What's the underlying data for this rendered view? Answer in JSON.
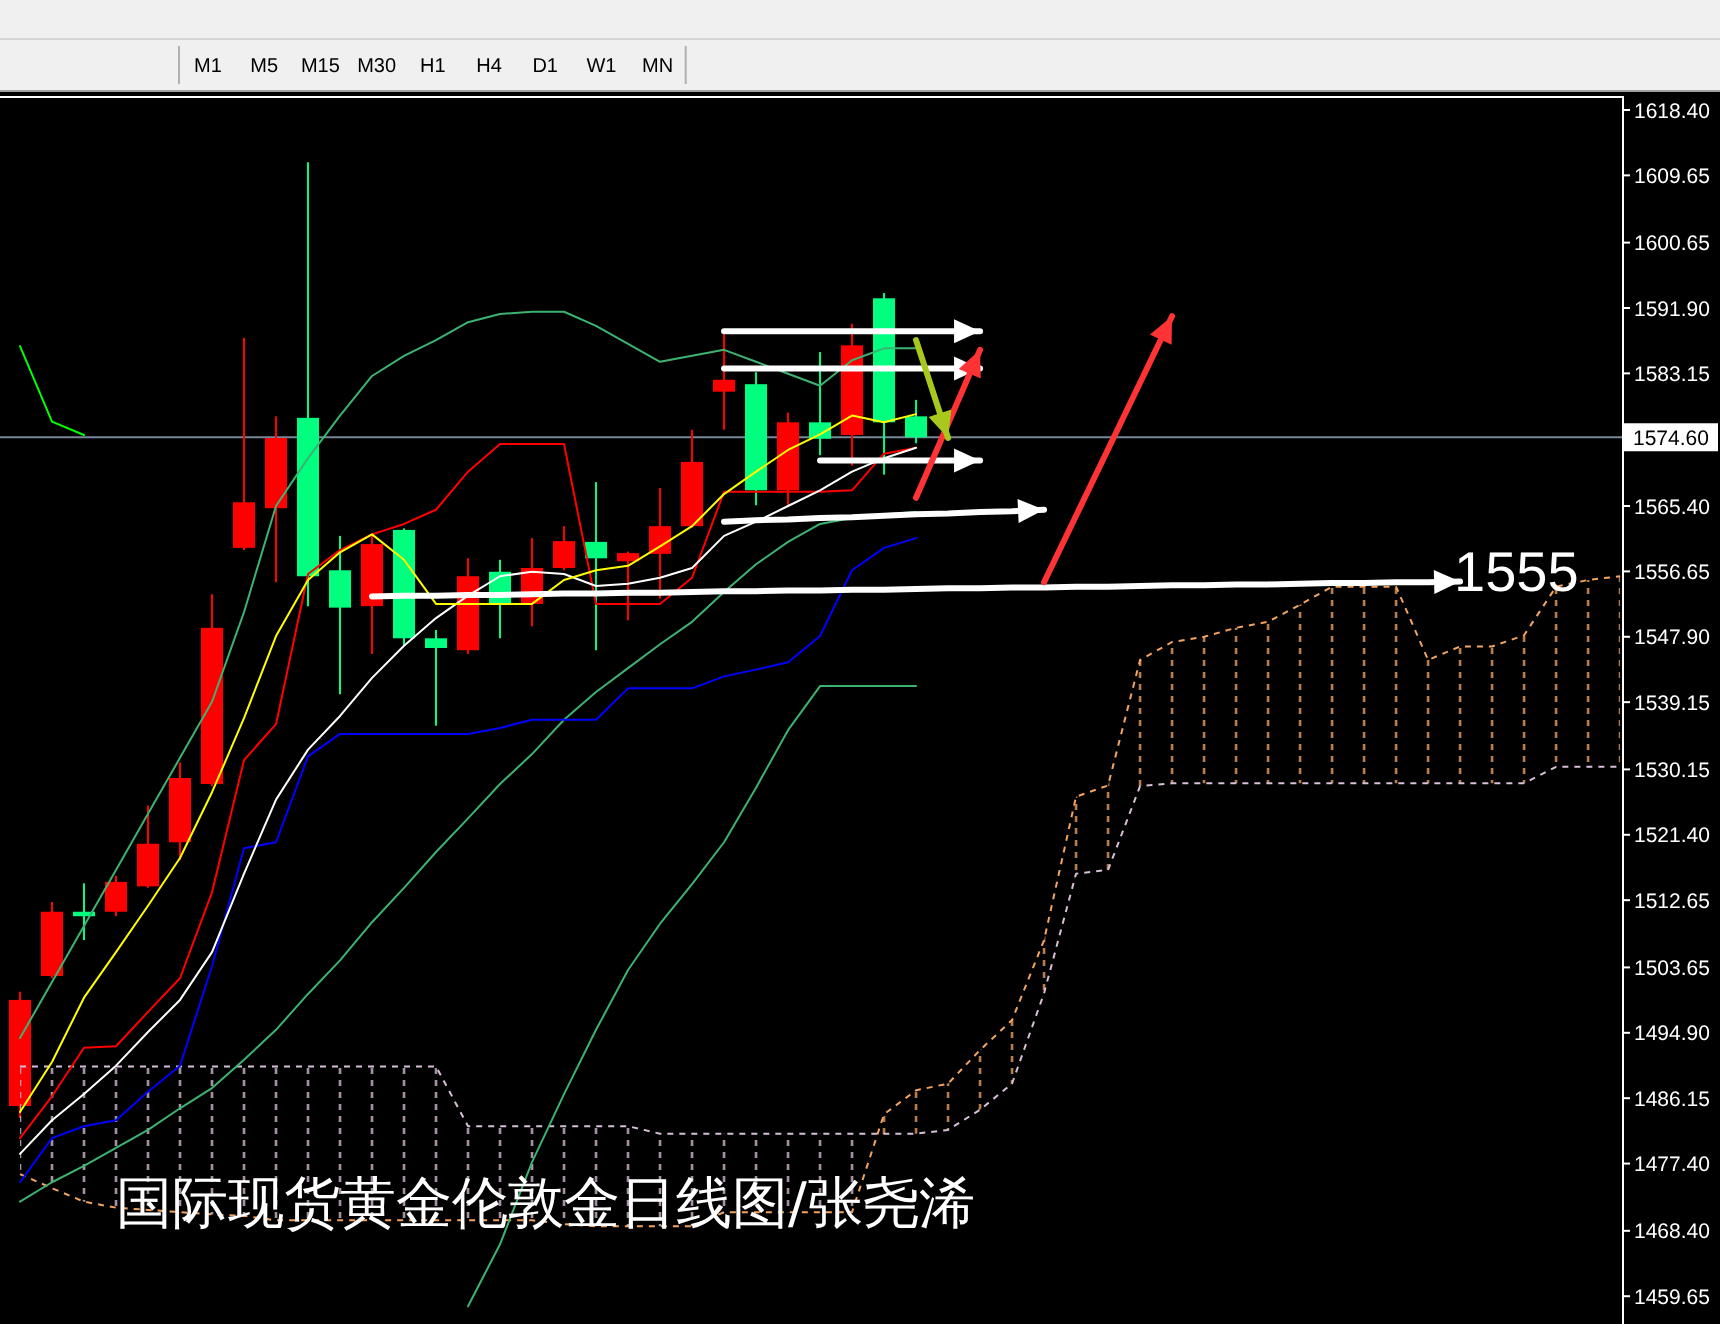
{
  "chart_data": {
    "type": "candlestick",
    "title": "国际现货黄金伦敦金日线图/张尧浠",
    "categories": [
      null,
      null,
      null,
      null,
      null,
      null,
      null,
      null,
      null,
      null,
      null,
      null,
      null,
      null,
      null,
      null,
      null,
      null,
      null,
      null,
      null,
      null,
      null,
      null,
      null,
      null,
      null,
      null,
      null,
      null,
      null,
      null,
      null,
      null,
      null,
      null,
      null,
      null,
      null,
      null,
      null,
      null,
      null,
      null,
      null,
      null,
      null,
      null,
      null,
      null,
      null
    ],
    "ohlc": [
      [
        1485.1,
        1500.4,
        1483.5,
        1499.3
      ],
      [
        1502.5,
        1512.4,
        1502.2,
        1511.1
      ],
      [
        1511.1,
        1514.9,
        1507.3,
        1510.5
      ],
      [
        1511.1,
        1515.9,
        1510.5,
        1515.1
      ],
      [
        1514.5,
        1525.3,
        1514.3,
        1520.2
      ],
      [
        1520.4,
        1531.1,
        1518.0,
        1529.0
      ],
      [
        1528.2,
        1553.6,
        1527.9,
        1549.1
      ],
      [
        1559.8,
        1587.9,
        1559.5,
        1565.9
      ],
      [
        1565.1,
        1577.4,
        1555.2,
        1574.5
      ],
      [
        1577.2,
        1611.4,
        1552.0,
        1556.0
      ],
      [
        1556.8,
        1561.4,
        1540.2,
        1551.8
      ],
      [
        1552.0,
        1561.7,
        1545.6,
        1560.3
      ],
      [
        1562.2,
        1562.4,
        1546.7,
        1547.7
      ],
      [
        1547.7,
        1548.8,
        1536.0,
        1546.4
      ],
      [
        1546.1,
        1558.4,
        1545.6,
        1556.0
      ],
      [
        1556.6,
        1558.2,
        1547.7,
        1552.3
      ],
      [
        1552.3,
        1561.1,
        1549.3,
        1557.1
      ],
      [
        1557.1,
        1562.7,
        1556.8,
        1560.7
      ],
      [
        1560.6,
        1568.6,
        1546.1,
        1558.4
      ],
      [
        1558.0,
        1559.3,
        1550.1,
        1559.1
      ],
      [
        1559.0,
        1567.8,
        1553.0,
        1562.7
      ],
      [
        1562.7,
        1575.6,
        1562.5,
        1571.3
      ],
      [
        1580.7,
        1588.4,
        1575.6,
        1582.3
      ],
      [
        1581.7,
        1583.3,
        1565.5,
        1567.5
      ],
      [
        1567.5,
        1577.9,
        1565.5,
        1576.6
      ],
      [
        1576.6,
        1586.0,
        1572.2,
        1574.4
      ],
      [
        1574.9,
        1589.8,
        1570.8,
        1586.9
      ],
      [
        1593.2,
        1593.9,
        1569.6,
        1576.6
      ],
      [
        1577.4,
        1579.6,
        1573.8,
        1574.6
      ],
      null,
      null,
      null,
      null,
      null,
      null,
      null,
      null,
      null,
      null,
      null,
      null,
      null,
      null,
      null,
      null,
      null,
      null,
      null,
      null,
      null,
      null
    ],
    "colors": [
      "#ff0000",
      "#ff0000",
      "#00ff7f",
      "#ff0000",
      "#ff0000",
      "#ff0000",
      "#ff0000",
      "#ff0000",
      "#ff0000",
      "#00ff7f",
      "#00ff7f",
      "#ff0000",
      "#00ff7f",
      "#00ff7f",
      "#ff0000",
      "#00ff7f",
      "#ff0000",
      "#ff0000",
      "#00ff7f",
      "#ff0000",
      "#ff0000",
      "#ff0000",
      "#ff0000",
      "#00ff7f",
      "#ff0000",
      "#00ff7f",
      "#ff0000",
      "#00ff7f",
      "#00ff7f",
      null,
      null,
      null,
      null,
      null,
      null,
      null,
      null,
      null,
      null,
      null,
      null,
      null,
      null,
      null,
      null,
      null,
      null,
      null,
      null,
      null,
      null
    ],
    "series": [
      {
        "type": "area",
        "color": "#f4a460",
        "line_style": "dashed",
        "values": [
          1476.0,
          1474.1,
          1472.3,
          1471.5,
          1471.2,
          1470.9,
          1470.6,
          1470.4,
          1469.8,
          1469.8,
          1469.8,
          1469.8,
          1469.8,
          1469.8,
          1469.8,
          1469.8,
          1469.8,
          1469.3,
          1469.0,
          1469.0,
          1469.0,
          1469.0,
          1470.9,
          1470.9,
          1470.9,
          1470.9,
          1470.9,
          1484.0,
          1487.2,
          1488.1,
          1492.6,
          1496.6,
          1507.3,
          1526.5,
          1528.0,
          1544.8,
          1547.2,
          1547.9,
          1549.1,
          1549.9,
          1552.2,
          1554.6,
          1554.6,
          1554.6,
          1544.8,
          1546.6,
          1546.6,
          1548.1,
          1554.6,
          1555.5,
          1556.0
        ]
      },
      {
        "type": "area",
        "color": "#d8bfd8",
        "line_style": "dashed",
        "values": [
          1490.4,
          1490.4,
          1490.4,
          1490.4,
          1490.4,
          1490.4,
          1490.4,
          1490.4,
          1490.4,
          1490.4,
          1490.4,
          1490.4,
          1490.4,
          1490.4,
          1482.4,
          1482.4,
          1482.4,
          1482.4,
          1482.4,
          1482.4,
          1481.4,
          1481.4,
          1481.4,
          1481.4,
          1481.4,
          1481.4,
          1481.4,
          1481.4,
          1481.4,
          1481.9,
          1484.6,
          1488.1,
          1500.2,
          1516.2,
          1516.7,
          1527.9,
          1528.3,
          1528.3,
          1528.3,
          1528.3,
          1528.3,
          1528.3,
          1528.3,
          1528.3,
          1528.3,
          1528.3,
          1528.3,
          1528.3,
          1530.5,
          1530.5,
          1530.5
        ]
      },
      {
        "type": "line",
        "color": "#3cb371",
        "values": [
          1494.2,
          1501.7,
          1509.2,
          1516.7,
          1524.2,
          1531.7,
          1539.2,
          1551.2,
          1565.4,
          1571.8,
          1577.5,
          1582.8,
          1585.5,
          1587.6,
          1590.0,
          1591.1,
          1591.4,
          1591.4,
          1589.5,
          1587.1,
          1584.7,
          1585.5,
          1586.3,
          1584.7,
          1583.1,
          1581.5,
          1584.9,
          1586.5,
          1586.5,
          null,
          null,
          null,
          null,
          null,
          null,
          null,
          null,
          null,
          null,
          null,
          null,
          null,
          null,
          null,
          null,
          null,
          null,
          null,
          null,
          null,
          null
        ]
      },
      {
        "type": "line",
        "color": "#3cb371",
        "values": [
          1472.3,
          1474.9,
          1477.1,
          1479.5,
          1481.9,
          1484.8,
          1487.5,
          1491.3,
          1495.3,
          1500.1,
          1504.6,
          1509.7,
          1514.3,
          1519.1,
          1523.6,
          1528.2,
          1532.2,
          1536.8,
          1540.5,
          1543.7,
          1546.9,
          1549.9,
          1553.9,
          1557.6,
          1560.6,
          1563.0,
          1563.8,
          1564.3,
          1564.6,
          null,
          null,
          null,
          null,
          null,
          null,
          null,
          null,
          null,
          null,
          null,
          null,
          null,
          null,
          null,
          null,
          null,
          null,
          null,
          null,
          null,
          null
        ]
      },
      {
        "type": "line",
        "color": "#3cb371",
        "values": [
          null,
          null,
          null,
          null,
          null,
          null,
          null,
          null,
          null,
          null,
          null,
          null,
          null,
          null,
          1458.3,
          1466.6,
          1477.6,
          1486.7,
          1495.3,
          1503.3,
          1509.5,
          1514.8,
          1520.4,
          1527.7,
          1535.4,
          1541.3,
          1541.3,
          1541.3,
          1541.3,
          null,
          null,
          null,
          null,
          null,
          null,
          null,
          null,
          null,
          null,
          null,
          null,
          null,
          null,
          null,
          null,
          null,
          null,
          null,
          null,
          null,
          null
        ]
      },
      {
        "type": "line",
        "color": "#0000ff",
        "values": [
          1474.9,
          1480.8,
          1482.4,
          1483.2,
          1487.0,
          1490.5,
          1503.8,
          1519.6,
          1520.4,
          1531.9,
          1534.9,
          1534.9,
          1534.9,
          1534.9,
          1534.9,
          1535.7,
          1536.8,
          1536.8,
          1536.8,
          1541.0,
          1541.0,
          1541.0,
          1542.6,
          1543.5,
          1544.5,
          1548.0,
          1556.8,
          1559.8,
          1561.1,
          null,
          null,
          null,
          null,
          null,
          null,
          null,
          null,
          null,
          null,
          null,
          null,
          null,
          null,
          null,
          null,
          null,
          null,
          null,
          null,
          null,
          null
        ]
      },
      {
        "type": "line",
        "color": "#ff0000",
        "values": [
          1480.8,
          1486.4,
          1492.9,
          1493.1,
          1497.7,
          1502.2,
          1513.7,
          1531.4,
          1536.2,
          1556.3,
          1559.5,
          1561.6,
          1563.0,
          1564.9,
          1570.0,
          1573.7,
          1573.7,
          1573.7,
          1552.3,
          1552.3,
          1552.3,
          1555.8,
          1567.3,
          1567.3,
          1567.3,
          1567.3,
          1567.5,
          1572.4,
          1573.2,
          null,
          null,
          null,
          null,
          null,
          null,
          null,
          null,
          null,
          null,
          null,
          null,
          null,
          null,
          null,
          null,
          null,
          null,
          null,
          null,
          null,
          null
        ]
      },
      {
        "type": "line",
        "color": "#ffffff",
        "values": [
          1478.7,
          1483.2,
          1486.7,
          1490.5,
          1495.0,
          1499.3,
          1505.7,
          1516.2,
          1526.1,
          1532.8,
          1537.3,
          1542.4,
          1546.7,
          1550.4,
          1553.4,
          1556.0,
          1556.6,
          1556.3,
          1554.7,
          1555.0,
          1555.8,
          1557.1,
          1561.4,
          1563.3,
          1565.4,
          1567.5,
          1570.0,
          1571.8,
          1573.2,
          null,
          null,
          null,
          null,
          null,
          null,
          null,
          null,
          null,
          null,
          null,
          null,
          null,
          null,
          null,
          null,
          null,
          null,
          null,
          null,
          null,
          null
        ]
      },
      {
        "type": "line",
        "color": "#ffff00",
        "values": [
          1484.3,
          1491.0,
          1499.6,
          1505.7,
          1511.9,
          1518.3,
          1527.1,
          1537.0,
          1548.0,
          1555.5,
          1559.2,
          1561.6,
          1558.2,
          1552.3,
          1552.3,
          1552.3,
          1552.3,
          1555.5,
          1556.8,
          1557.4,
          1560.0,
          1562.7,
          1567.0,
          1570.0,
          1572.9,
          1575.0,
          1577.5,
          1576.6,
          1577.7,
          null,
          null,
          null,
          null,
          null,
          null,
          null,
          null,
          null,
          null,
          null,
          null,
          null,
          null,
          null,
          null,
          null,
          null,
          null,
          null,
          null,
          null
        ]
      },
      {
        "type": "line",
        "color": "#00ff00",
        "values": [
          1586.8,
          1576.7,
          1574.9,
          null,
          null,
          null,
          null,
          null,
          null,
          null,
          null,
          null,
          null,
          null,
          null,
          null,
          null,
          null,
          null,
          null,
          null,
          null,
          null,
          null,
          null,
          null,
          null,
          null,
          null,
          null,
          null,
          null,
          null,
          null,
          null,
          null,
          null,
          null,
          null,
          null,
          null,
          null,
          null,
          null,
          null,
          null,
          null,
          null,
          null,
          null,
          null
        ]
      },
      {
        "type": "line",
        "color": "#ffffff",
        "values": [
          null,
          null,
          null,
          null,
          null,
          null,
          null,
          null,
          null,
          null,
          null,
          null,
          null,
          null,
          null,
          null,
          null,
          null,
          null,
          null,
          null,
          null,
          1588.8,
          1588.8,
          1588.8,
          1588.8,
          1588.8,
          1588.8,
          1588.8,
          1588.8,
          1588.8,
          null,
          null,
          null,
          null,
          null,
          null,
          null,
          null,
          null,
          null,
          null,
          null,
          null,
          null,
          null,
          null,
          null,
          null,
          null,
          null
        ]
      },
      {
        "type": "line",
        "color": "#ffffff",
        "values": [
          null,
          null,
          null,
          null,
          null,
          null,
          null,
          null,
          null,
          null,
          null,
          null,
          null,
          null,
          null,
          null,
          null,
          null,
          null,
          null,
          null,
          null,
          1583.8,
          1583.8,
          1583.8,
          1583.8,
          1583.8,
          1583.8,
          1583.8,
          1583.8,
          1583.8,
          null,
          null,
          null,
          null,
          null,
          null,
          null,
          null,
          null,
          null,
          null,
          null,
          null,
          null,
          null,
          null,
          null,
          null,
          null,
          null
        ]
      },
      {
        "type": "line",
        "color": "#ffffff",
        "values": [
          null,
          null,
          null,
          null,
          null,
          null,
          null,
          null,
          null,
          null,
          null,
          null,
          null,
          null,
          null,
          null,
          null,
          null,
          null,
          null,
          null,
          null,
          null,
          null,
          null,
          1571.5,
          1571.5,
          1571.5,
          1571.5,
          1571.5,
          1571.5,
          null,
          null,
          null,
          null,
          null,
          null,
          null,
          null,
          null,
          null,
          null,
          null,
          null,
          null,
          null,
          null,
          null,
          null,
          null,
          null
        ]
      },
      {
        "type": "line",
        "color": "#ffffff",
        "values": [
          null,
          null,
          null,
          null,
          null,
          null,
          null,
          null,
          null,
          null,
          null,
          null,
          null,
          null,
          null,
          null,
          null,
          null,
          null,
          null,
          null,
          null,
          1563.3,
          1563.5,
          1563.6,
          1563.8,
          1563.9,
          1564.1,
          1564.3,
          1564.4,
          1564.6,
          1564.7,
          1564.9,
          null,
          null,
          null,
          null,
          null,
          null,
          null,
          null,
          null,
          null,
          null,
          null,
          null,
          null,
          null,
          null,
          null,
          null
        ]
      },
      {
        "type": "line",
        "color": "#ffffff",
        "values": [
          null,
          null,
          null,
          null,
          null,
          null,
          null,
          null,
          null,
          null,
          null,
          1553.3,
          1553.4,
          1553.4,
          1553.5,
          1553.5,
          1553.6,
          1553.7,
          1553.7,
          1553.8,
          1553.8,
          1553.9,
          1554.0,
          1554.0,
          1554.1,
          1554.1,
          1554.2,
          1554.2,
          1554.3,
          1554.4,
          1554.4,
          1554.5,
          1554.5,
          1554.6,
          1554.6,
          1554.7,
          1554.8,
          1554.8,
          1554.9,
          1554.9,
          1555.0,
          1555.1,
          1555.1,
          1555.2,
          1555.2,
          1555.3,
          null,
          null,
          null,
          null,
          null
        ]
      },
      {
        "type": "line",
        "color": "#ff3333",
        "values": [
          null,
          null,
          null,
          null,
          null,
          null,
          null,
          null,
          null,
          null,
          null,
          null,
          null,
          null,
          null,
          null,
          null,
          null,
          null,
          null,
          null,
          null,
          null,
          null,
          null,
          null,
          null,
          null,
          1566.5,
          1576.4,
          1586.3,
          null,
          null,
          null,
          null,
          null,
          null,
          null,
          null,
          null,
          null,
          null,
          null,
          null,
          null,
          null,
          null,
          null,
          null,
          null,
          null
        ]
      },
      {
        "type": "line",
        "color": "#ff3333",
        "values": [
          null,
          null,
          null,
          null,
          null,
          null,
          null,
          null,
          null,
          null,
          null,
          null,
          null,
          null,
          null,
          null,
          null,
          null,
          null,
          null,
          null,
          null,
          null,
          null,
          null,
          null,
          null,
          null,
          null,
          null,
          null,
          null,
          1555.2,
          1564.1,
          1573.0,
          1581.9,
          1590.8,
          null,
          null,
          null,
          null,
          null,
          null,
          null,
          null,
          null,
          null,
          null,
          null,
          null,
          null
        ]
      },
      {
        "type": "line",
        "color": "#a8c81e",
        "values": [
          null,
          null,
          null,
          null,
          null,
          null,
          null,
          null,
          null,
          null,
          null,
          null,
          null,
          null,
          null,
          null,
          null,
          null,
          null,
          null,
          null,
          null,
          null,
          null,
          null,
          null,
          null,
          null,
          1587.6,
          1574.5,
          null,
          null,
          null,
          null,
          null,
          null,
          null,
          null,
          null,
          null,
          null,
          null,
          null,
          null,
          null,
          null,
          null,
          null,
          null,
          null,
          null
        ]
      }
    ],
    "ylim": [
      1455.93,
      1620.27
    ],
    "yticks": [
      {
        "value": 1618.4,
        "label": "1618.40"
      },
      {
        "value": 1609.65,
        "label": "1609.65"
      },
      {
        "value": 1600.65,
        "label": "1600.65"
      },
      {
        "value": 1591.9,
        "label": "1591.90"
      },
      {
        "value": 1583.15,
        "label": "1583.15"
      },
      {
        "value": 1565.4,
        "label": "1565.40"
      },
      {
        "value": 1556.65,
        "label": "1556.65"
      },
      {
        "value": 1547.9,
        "label": "1547.90"
      },
      {
        "value": 1539.15,
        "label": "1539.15"
      },
      {
        "value": 1530.15,
        "label": "1530.15"
      },
      {
        "value": 1521.4,
        "label": "1521.40"
      },
      {
        "value": 1512.65,
        "label": "1512.65"
      },
      {
        "value": 1503.65,
        "label": "1503.65"
      },
      {
        "value": 1494.9,
        "label": "1494.90"
      },
      {
        "value": 1486.15,
        "label": "1486.15"
      },
      {
        "value": 1477.4,
        "label": "1477.40"
      },
      {
        "value": 1468.4,
        "label": "1468.40"
      },
      {
        "value": 1459.65,
        "label": "1459.65"
      }
    ],
    "ref_lines": [
      {
        "axis": "y",
        "value": 1574.6,
        "label": "1574.60",
        "color": "#778899"
      }
    ],
    "annotations": [
      "M1",
      "M5",
      "M15",
      "M30",
      "H1",
      "H4",
      "D1",
      "W1",
      "MN",
      "1555"
    ],
    "grid": false,
    "tick_labels": "y"
  }
}
